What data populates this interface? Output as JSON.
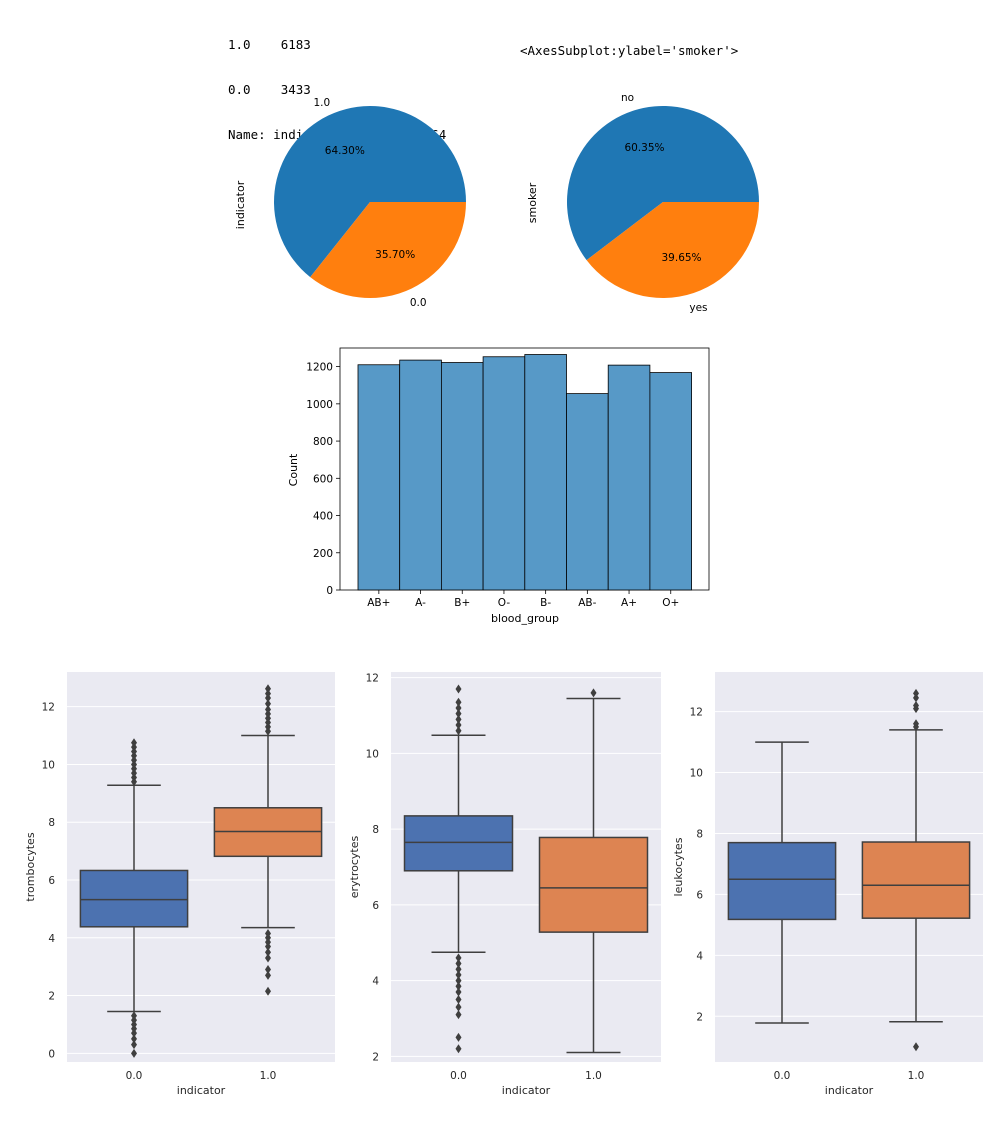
{
  "console": {
    "line1_key": "1.0",
    "line1_val": "6183",
    "line2_key": "0.0",
    "line2_val": "3433",
    "line3": "Name: indicator, dtype: int64",
    "repr": "<AxesSubplot:ylabel='smoker'>"
  },
  "colors": {
    "blue": "#1f77b4",
    "orange": "#ff7f0e",
    "hist": "#5799c7",
    "box_blue": "#4c72b0",
    "box_orange": "#dd8452",
    "seaborn_bg": "#eaeaf2"
  },
  "chart_data": [
    {
      "type": "pie",
      "ylabel": "indicator",
      "labels": [
        "1.0",
        "0.0"
      ],
      "values": [
        64.3,
        35.7
      ],
      "pct_labels": [
        "64.30%",
        "35.70%"
      ]
    },
    {
      "type": "pie",
      "ylabel": "smoker",
      "labels": [
        "no",
        "yes"
      ],
      "values": [
        60.35,
        39.65
      ],
      "pct_labels": [
        "60.35%",
        "39.65%"
      ]
    },
    {
      "type": "bar",
      "xlabel": "blood_group",
      "ylabel": "Count",
      "categories": [
        "AB+",
        "A-",
        "B+",
        "O-",
        "B-",
        "AB-",
        "A+",
        "O+"
      ],
      "values": [
        1210,
        1235,
        1222,
        1253,
        1265,
        1055,
        1208,
        1168
      ],
      "ylim": [
        0,
        1300
      ],
      "yticks": [
        0,
        200,
        400,
        600,
        800,
        1000,
        1200
      ]
    },
    {
      "type": "box",
      "xlabel": "indicator",
      "ylabel": "trombocytes",
      "categories": [
        "0.0",
        "1.0"
      ],
      "ylim": [
        -0.3,
        13.2
      ],
      "yticks": [
        0,
        2,
        4,
        6,
        8,
        10,
        12
      ],
      "boxes": [
        {
          "min": 1.45,
          "q1": 4.38,
          "median": 5.32,
          "q3": 6.33,
          "max": 9.28,
          "outliers": [
            0.0,
            0.3,
            0.5,
            0.7,
            0.85,
            1.0,
            1.15,
            1.3,
            9.4,
            9.55,
            9.7,
            9.85,
            10.0,
            10.15,
            10.3,
            10.45,
            10.6,
            10.75
          ]
        },
        {
          "min": 4.35,
          "q1": 6.82,
          "median": 7.68,
          "q3": 8.5,
          "max": 11.0,
          "outliers": [
            2.15,
            2.7,
            2.9,
            3.3,
            3.5,
            3.7,
            3.85,
            4.0,
            4.15,
            11.15,
            11.3,
            11.45,
            11.6,
            11.75,
            11.9,
            12.1,
            12.3,
            12.45,
            12.62
          ]
        }
      ]
    },
    {
      "type": "box",
      "xlabel": "indicator",
      "ylabel": "erytrocytes",
      "categories": [
        "0.0",
        "1.0"
      ],
      "ylim": [
        1.85,
        12.15
      ],
      "yticks": [
        2,
        4,
        6,
        8,
        10,
        12
      ],
      "boxes": [
        {
          "min": 4.75,
          "q1": 6.9,
          "median": 7.65,
          "q3": 8.35,
          "max": 10.48,
          "outliers": [
            2.2,
            2.5,
            3.1,
            3.3,
            3.5,
            3.7,
            3.85,
            4.0,
            4.15,
            4.3,
            4.45,
            4.6,
            10.6,
            10.75,
            10.9,
            11.05,
            11.2,
            11.35,
            11.7
          ]
        },
        {
          "min": 2.1,
          "q1": 5.28,
          "median": 6.45,
          "q3": 7.78,
          "max": 11.45,
          "outliers": [
            11.6
          ]
        }
      ]
    },
    {
      "type": "box",
      "xlabel": "indicator",
      "ylabel": "leukocytes",
      "categories": [
        "0.0",
        "1.0"
      ],
      "ylim": [
        0.5,
        13.3
      ],
      "yticks": [
        2,
        4,
        6,
        8,
        10,
        12
      ],
      "boxes": [
        {
          "min": 1.78,
          "q1": 5.18,
          "median": 6.5,
          "q3": 7.7,
          "max": 11.0,
          "outliers": []
        },
        {
          "min": 1.82,
          "q1": 5.22,
          "median": 6.3,
          "q3": 7.72,
          "max": 11.4,
          "outliers": [
            1.0,
            11.5,
            11.6,
            12.1,
            12.2,
            12.45,
            12.6
          ]
        }
      ]
    }
  ]
}
